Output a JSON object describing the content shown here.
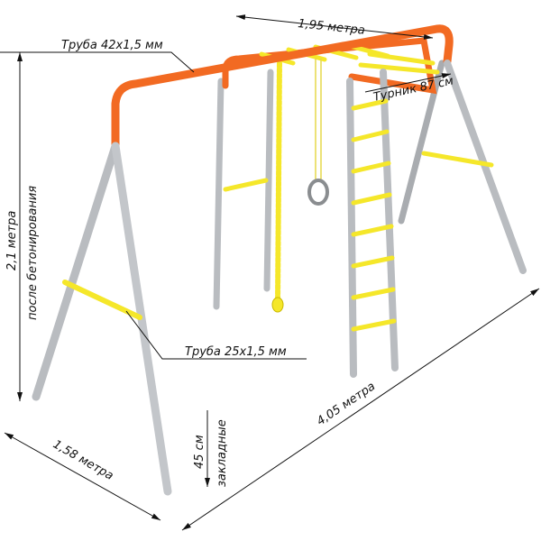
{
  "labels": {
    "width_top": "1,95 метра",
    "pipe_main": "Труба 42x1,5 мм",
    "bar": "Турник 87 см",
    "height": "2,1 метра",
    "height_note": "после бетонирования",
    "pipe_small": "Труба 25x1,5 мм",
    "length": "4,05 метра",
    "depth": "1,58 метра",
    "embed": "45 см",
    "embed_note": "закладные"
  },
  "colors": {
    "frame": "#f26a22",
    "legs": "#b9bcc0",
    "accent": "#f5e72a"
  }
}
